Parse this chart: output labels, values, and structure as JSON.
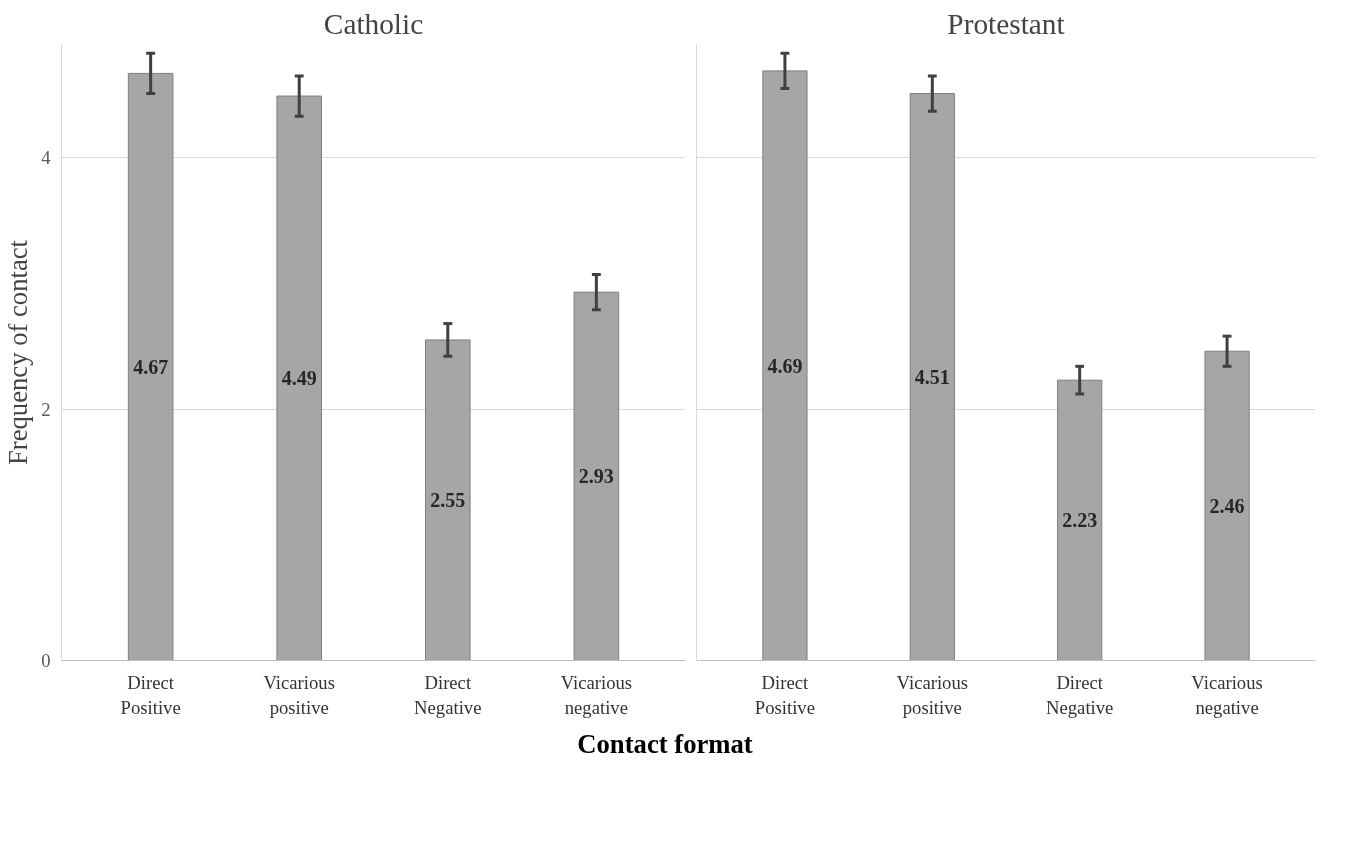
{
  "chart_data": [
    {
      "type": "bar",
      "title": "Catholic",
      "ylabel": "Frequency of contact",
      "xlabel": "Contact format",
      "categories": [
        "Direct\nPositive",
        "Vicarious\npositive",
        "Direct\nNegative",
        "Vicarious\nnegative"
      ],
      "series": [
        {
          "color": "#a6a6a6",
          "values": [
            4.67,
            4.49,
            2.55,
            2.93
          ],
          "errors": [
            0.16,
            0.16,
            0.13,
            0.14
          ]
        }
      ],
      "ylim": [
        0,
        4.9
      ],
      "yticks": [
        0,
        2,
        4
      ],
      "grid": "y",
      "data_labels": true
    },
    {
      "type": "bar",
      "title": "Protestant",
      "categories": [
        "Direct\nPositive",
        "Vicarious\npositive",
        "Direct\nNegative",
        "Vicarious\nnegative"
      ],
      "series": [
        {
          "color": "#a6a6a6",
          "values": [
            4.69,
            4.51,
            2.23,
            2.46
          ],
          "errors": [
            0.14,
            0.14,
            0.11,
            0.12
          ]
        }
      ],
      "ylim": [
        0,
        4.9
      ],
      "yticks": [
        0,
        2,
        4
      ],
      "grid": "y",
      "data_labels": true,
      "tick_labels": "x"
    }
  ]
}
